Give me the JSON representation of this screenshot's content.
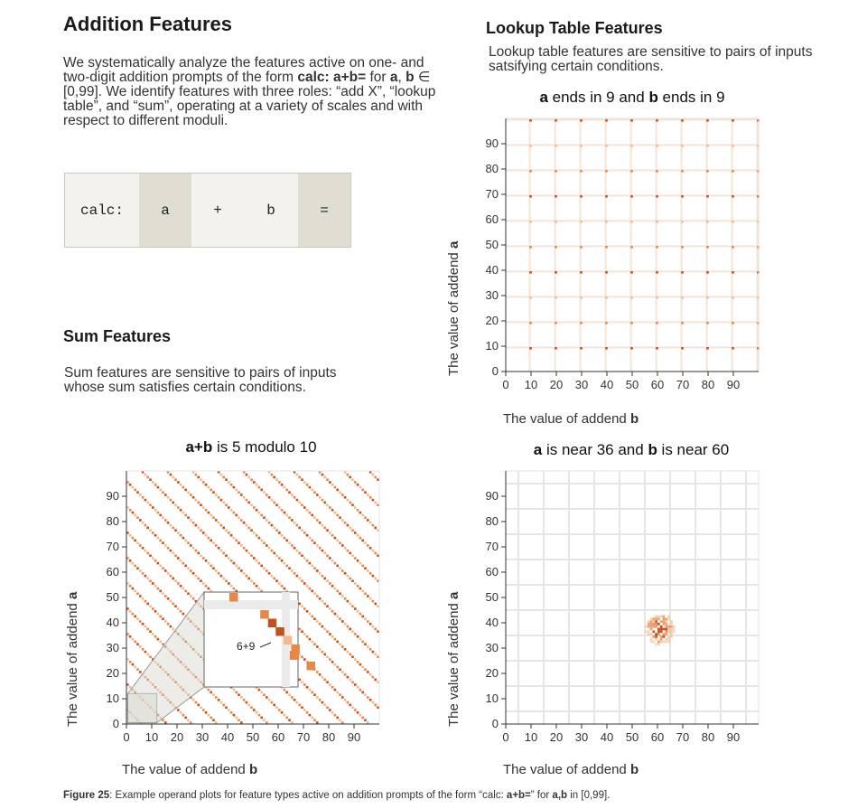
{
  "addition": {
    "title": "Addition Features",
    "para_1": "We systematically analyze the features active on one- and",
    "para_2_a": "two-digit addition prompts of the form ",
    "para_2_b": "calc: a+b=",
    "para_2_c": " for ",
    "para_2_d": "a",
    "para_2_e": ", ",
    "para_2_f": "b",
    "para_2_g": " ∈",
    "para_3": "[0,99]. We identify features with three roles: “add X”, “lookup",
    "para_4": "table”, and “sum”, operating at a variety of scales and with",
    "para_5": "respect to different moduli."
  },
  "tokens": [
    "calc:",
    "a",
    "+",
    "b",
    "="
  ],
  "sum": {
    "title": "Sum Features",
    "para_1": "Sum features are sensitive to pairs of inputs",
    "para_2": "whose sum satisfies certain conditions."
  },
  "lookup": {
    "title": "Lookup Table Features",
    "para_1": "Lookup table features are sensitive to pairs of inputs",
    "para_2": "satsifying certain conditions."
  },
  "plots": {
    "tl": {
      "t1": "a",
      "t2": " ends in 9 and ",
      "t3": "b",
      "t4": " ends in 9"
    },
    "bl": {
      "t1": "a+b",
      "t2": " is 5 modulo 10",
      "inset_label": "6+9"
    },
    "br": {
      "t1": "a",
      "t2": " is near 36 and ",
      "t3": "b",
      "t4": " is near 60"
    },
    "ticks": [
      "0",
      "10",
      "20",
      "30",
      "40",
      "50",
      "60",
      "70",
      "80",
      "90"
    ],
    "xlabel": "The value of addend ",
    "xlabel_b": "b",
    "ylabel": "The value of addend ",
    "ylabel_a": "a"
  },
  "caption": {
    "fig": "Figure 25",
    "text_1": ": Example operand plots for feature types active on addition prompts of the form “calc: ",
    "text_2": "a+b=",
    "text_3": "” for ",
    "text_4": "a,b",
    "text_5": " in [0,99]."
  },
  "colors": {
    "dark": "#c4501e",
    "mid": "#e8874a",
    "light": "#f3b98a",
    "grid": "#d9d9d9"
  }
}
